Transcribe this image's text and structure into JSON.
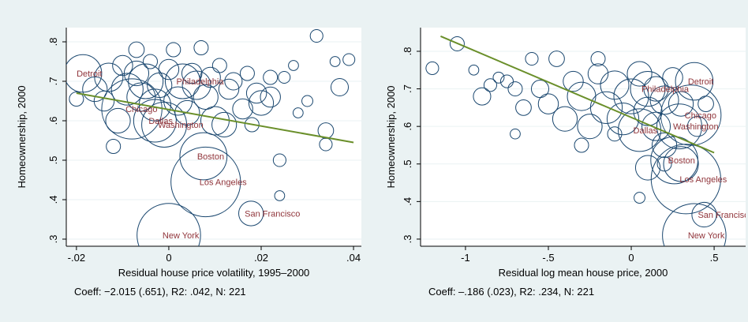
{
  "chart_data": [
    {
      "type": "scatter",
      "x_label": "Residual house price volatility, 1995–2000",
      "y_label": "Homeownership, 2000",
      "note": "Coeff: −2.015 (.651), R2: .042, N: 221",
      "marker_color": "#1a476f",
      "label_color": "#90353b",
      "fit_color": "#6a8f2a",
      "xlim": [
        -0.0222,
        0.0417
      ],
      "ylim": [
        0.282,
        0.836
      ],
      "xticks": [
        {
          "value": -0.02,
          "label": "-.02"
        },
        0,
        {
          "value": 0.02,
          "label": ".02"
        },
        {
          "value": 0.04,
          "label": ".04"
        }
      ],
      "yticks": [
        {
          "value": 0.3,
          "label": ".3"
        },
        {
          "value": 0.4,
          "label": ".4"
        },
        {
          "value": 0.5,
          "label": ".5"
        },
        {
          "value": 0.6,
          "label": ".6"
        },
        {
          "value": 0.7,
          "label": ".7"
        },
        {
          "value": 0.8,
          "label": ".8"
        }
      ],
      "x": [
        -0.0186,
        0.003,
        -0.008,
        -0.001,
        -0.003,
        0.0075,
        0.008,
        0.0178,
        0.0,
        -0.02,
        -0.016,
        -0.014,
        -0.013,
        -0.012,
        -0.011,
        -0.01,
        -0.009,
        -0.007,
        -0.006,
        -0.005,
        -0.004,
        -0.003,
        -0.002,
        0.0,
        0.001,
        0.002,
        0.004,
        0.005,
        0.006,
        0.007,
        0.008,
        0.009,
        0.01,
        0.011,
        0.012,
        0.013,
        0.014,
        0.016,
        0.017,
        0.018,
        0.019,
        0.02,
        0.022,
        0.022,
        0.024,
        0.024,
        0.025,
        0.027,
        0.028,
        0.03,
        0.032,
        0.034,
        0.034,
        0.036,
        0.037,
        0.039,
        -0.007
      ],
      "y": [
        0.72,
        0.7,
        0.63,
        0.59,
        0.6,
        0.51,
        0.445,
        0.365,
        0.31,
        0.655,
        0.68,
        0.65,
        0.71,
        0.535,
        0.6,
        0.74,
        0.68,
        0.72,
        0.66,
        0.7,
        0.75,
        0.64,
        0.69,
        0.73,
        0.78,
        0.65,
        0.62,
        0.72,
        0.69,
        0.785,
        0.66,
        0.71,
        0.6,
        0.74,
        0.59,
        0.68,
        0.7,
        0.63,
        0.72,
        0.59,
        0.67,
        0.645,
        0.66,
        0.71,
        0.5,
        0.41,
        0.71,
        0.74,
        0.62,
        0.65,
        0.815,
        0.575,
        0.54,
        0.75,
        0.685,
        0.755,
        0.78
      ],
      "size": [
        7,
        6,
        18,
        10,
        9,
        11,
        24,
        3,
        20,
        1,
        3,
        2,
        4,
        1,
        3,
        2,
        5,
        3,
        4,
        6,
        1,
        5,
        3,
        2,
        1,
        4,
        3,
        2,
        4,
        1,
        3,
        2,
        4,
        1,
        3,
        2,
        1.5,
        2,
        1,
        1,
        2,
        3,
        2,
        1,
        0.8,
        0.5,
        0.7,
        0.5,
        0.5,
        0.6,
        0.8,
        1.2,
        0.8,
        0.5,
        1.5,
        0.7,
        1.2
      ],
      "labels": [
        "Detroit",
        "Philadelphia",
        "Chicago",
        "Washington",
        "Dallas",
        "Boston",
        "Los Angeles",
        "San Francisco",
        "New York",
        null,
        null,
        null,
        null,
        null,
        null,
        null,
        null,
        null,
        null,
        null,
        null,
        null,
        null,
        null,
        null,
        null,
        null,
        null,
        null,
        null,
        null,
        null,
        null,
        null,
        null,
        null,
        null,
        null,
        null,
        null,
        null,
        null,
        null,
        null,
        null,
        null,
        null,
        null,
        null,
        null,
        null,
        null,
        null,
        null,
        null,
        null,
        null
      ],
      "fit": {
        "x": [
          -0.02,
          0.04
        ],
        "y": [
          0.67,
          0.545
        ]
      }
    },
    {
      "type": "scatter",
      "x_label": "Residual log mean house price, 2000",
      "y_label": "Homeownership, 2000",
      "note": "Coeff: –.186 (.023), R2: .234, N: 221",
      "marker_color": "#1a476f",
      "label_color": "#90353b",
      "fit_color": "#6a8f2a",
      "xlim": [
        -1.271,
        0.69
      ],
      "ylim": [
        0.281,
        0.863
      ],
      "xticks": [
        -1,
        {
          "value": -0.5,
          "label": "-.5"
        },
        0,
        {
          "value": 0.5,
          "label": ".5"
        }
      ],
      "yticks": [
        {
          "value": 0.3,
          "label": ".3"
        },
        {
          "value": 0.4,
          "label": ".4"
        },
        {
          "value": 0.5,
          "label": ".5"
        },
        {
          "value": 0.6,
          "label": ".6"
        },
        {
          "value": 0.7,
          "label": ".7"
        },
        {
          "value": 0.8,
          "label": ".8"
        }
      ],
      "x": [
        0.38,
        0.1,
        0.36,
        0.29,
        0.05,
        0.26,
        0.33,
        0.44,
        0.38,
        -1.2,
        -1.05,
        -0.95,
        -0.9,
        -0.85,
        -0.8,
        -0.75,
        -0.7,
        -0.7,
        -0.65,
        -0.6,
        -0.55,
        -0.5,
        -0.45,
        -0.4,
        -0.35,
        -0.3,
        -0.25,
        -0.2,
        -0.15,
        -0.1,
        -0.05,
        0.0,
        0.05,
        0.1,
        0.15,
        0.2,
        0.2,
        0.25,
        0.3,
        0.3,
        0.05,
        0.1,
        0.2,
        0.45,
        0.4,
        -0.3,
        -0.2,
        0.15,
        -0.1
      ],
      "y": [
        0.72,
        0.7,
        0.63,
        0.6,
        0.59,
        0.51,
        0.46,
        0.365,
        0.31,
        0.755,
        0.82,
        0.75,
        0.68,
        0.71,
        0.73,
        0.72,
        0.7,
        0.58,
        0.65,
        0.78,
        0.7,
        0.66,
        0.78,
        0.62,
        0.72,
        0.68,
        0.6,
        0.74,
        0.65,
        0.71,
        0.62,
        0.68,
        0.74,
        0.64,
        0.7,
        0.55,
        0.67,
        0.73,
        0.66,
        0.5,
        0.41,
        0.49,
        0.5,
        0.66,
        0.6,
        0.55,
        0.78,
        0.6,
        0.58
      ],
      "size": [
        7,
        6,
        18,
        10,
        9,
        11,
        24,
        3,
        20,
        0.8,
        1,
        0.5,
        1.5,
        0.8,
        0.6,
        0.8,
        1,
        0.5,
        1.2,
        0.8,
        1.5,
        2,
        1.2,
        3,
        2,
        4,
        3,
        2,
        5,
        4,
        5,
        6,
        3,
        4,
        3,
        3,
        4,
        2,
        3,
        6,
        0.6,
        3,
        1,
        1.2,
        2,
        1,
        1,
        4,
        1
      ],
      "labels": [
        "Detroit",
        "Philadelphia",
        "Chicago",
        "Washington",
        "Dallas",
        "Boston",
        "Los Angeles",
        "San Francisco",
        "New York",
        null,
        null,
        null,
        null,
        null,
        null,
        null,
        null,
        null,
        null,
        null,
        null,
        null,
        null,
        null,
        null,
        null,
        null,
        null,
        null,
        null,
        null,
        null,
        null,
        null,
        null,
        null,
        null,
        null,
        null,
        null,
        null,
        null,
        null,
        null,
        null,
        null,
        null,
        null,
        null
      ],
      "fit": {
        "x": [
          -1.15,
          0.5
        ],
        "y": [
          0.84,
          0.53
        ]
      }
    }
  ]
}
